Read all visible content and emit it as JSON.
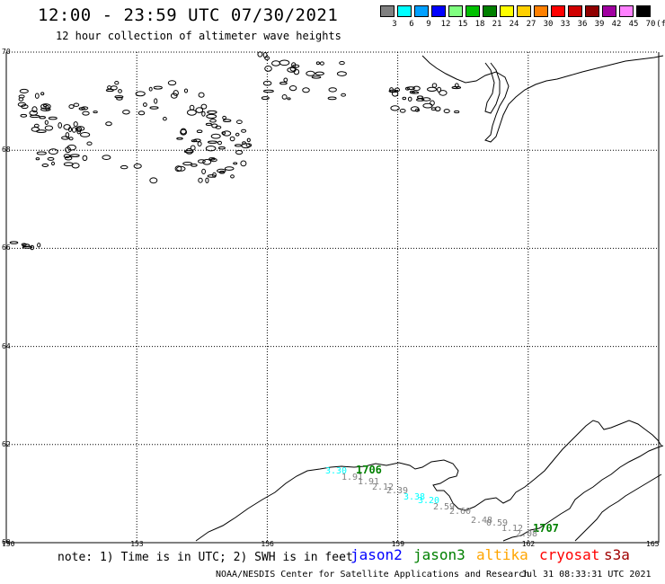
{
  "header": {
    "title": "12:00 - 23:59 UTC 07/30/2021",
    "subtitle": "12 hour collection of altimeter wave heights"
  },
  "legend": {
    "unit": "(ft)",
    "bins": [
      {
        "label": "3",
        "color": "#808080"
      },
      {
        "label": "6",
        "color": "#00ffff"
      },
      {
        "label": "9",
        "color": "#00a0ff"
      },
      {
        "label": "12",
        "color": "#0000ff"
      },
      {
        "label": "15",
        "color": "#80ff80"
      },
      {
        "label": "18",
        "color": "#00c000"
      },
      {
        "label": "21",
        "color": "#008000"
      },
      {
        "label": "24",
        "color": "#ffff00"
      },
      {
        "label": "27",
        "color": "#ffd000"
      },
      {
        "label": "30",
        "color": "#ff8000"
      },
      {
        "label": "33",
        "color": "#ff0000"
      },
      {
        "label": "36",
        "color": "#d00000"
      },
      {
        "label": "39",
        "color": "#900000"
      },
      {
        "label": "42",
        "color": "#a000a0"
      },
      {
        "label": "45",
        "color": "#ff80ff"
      },
      {
        "label": "70",
        "color": "#000000"
      }
    ]
  },
  "map": {
    "lat_labels": [
      "70",
      "68",
      "66",
      "64",
      "62",
      "60"
    ],
    "lon_labels": [
      "150",
      "153",
      "156",
      "159",
      "162",
      "165"
    ],
    "grid": "dotted",
    "track_labels": [
      {
        "text": "3.30",
        "color": "#00ffff"
      },
      {
        "text": "1706",
        "color": "#008000"
      },
      {
        "text": "1.91",
        "color": "#808080"
      },
      {
        "text": "1.91",
        "color": "#808080"
      },
      {
        "text": "2.12",
        "color": "#808080"
      },
      {
        "text": "2.39",
        "color": "#808080"
      },
      {
        "text": "3.38",
        "color": "#00ffff"
      },
      {
        "text": "3.20",
        "color": "#00ffff"
      },
      {
        "text": "2.59",
        "color": "#808080"
      },
      {
        "text": "2.60",
        "color": "#808080"
      },
      {
        "text": "2.48",
        "color": "#808080"
      },
      {
        "text": "0.59",
        "color": "#808080"
      },
      {
        "text": "1.12",
        "color": "#808080"
      },
      {
        "text": "1707",
        "color": "#008000"
      },
      {
        "text": "2.08",
        "color": "#808080"
      }
    ]
  },
  "footer": {
    "note": "note: 1) Time is in UTC; 2) SWH is in feet",
    "satellites": [
      {
        "name": "jason2",
        "color": "#0000ff"
      },
      {
        "name": "jason3",
        "color": "#008000"
      },
      {
        "name": "altika",
        "color": "#ffa500"
      },
      {
        "name": "cryosat",
        "color": "#ff0000"
      },
      {
        "name": "s3a",
        "color": "#a00000"
      }
    ],
    "credit": "NOAA/NESDIS Center for Satellite Applications and Research",
    "timestamp": "Jul 31 08:33:31 UTC 2021"
  }
}
